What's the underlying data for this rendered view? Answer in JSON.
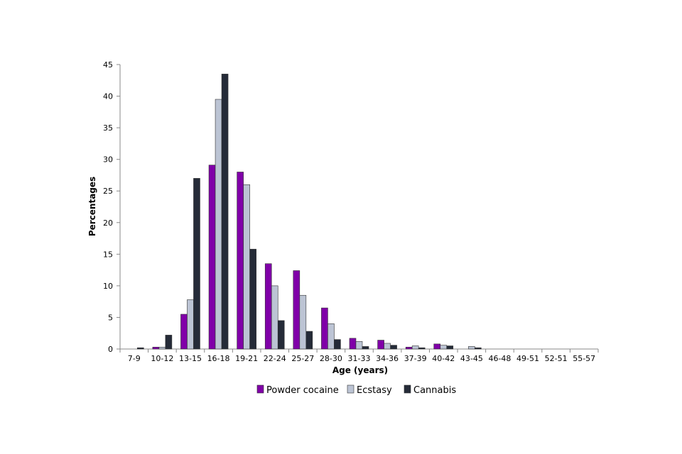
{
  "chart_data": {
    "type": "bar",
    "title": "",
    "xlabel": "Age (years)",
    "ylabel": "Percentages",
    "ylim": [
      0,
      45
    ],
    "yticks": [
      0,
      5,
      10,
      15,
      20,
      25,
      30,
      35,
      40,
      45
    ],
    "grid": false,
    "legend_position": "bottom",
    "categories": [
      "7-9",
      "10-12",
      "13-15",
      "16-18",
      "19-21",
      "22-24",
      "25-27",
      "28-30",
      "31-33",
      "34-36",
      "37-39",
      "40-42",
      "43-45",
      "46-48",
      "49-51",
      "52-51",
      "55-57"
    ],
    "series": [
      {
        "name": "Powder cocaine",
        "color": "#8000a8",
        "values": [
          0,
          0.3,
          5.5,
          29.1,
          28.0,
          13.5,
          12.4,
          6.5,
          1.7,
          1.4,
          0.3,
          0.8,
          0,
          0,
          0,
          0,
          0
        ]
      },
      {
        "name": "Ecstasy",
        "color": "#bcc4d4",
        "values": [
          0,
          0.3,
          7.8,
          39.5,
          26.0,
          10.0,
          8.5,
          4.0,
          1.2,
          0.9,
          0.5,
          0.6,
          0.4,
          0,
          0,
          0,
          0
        ]
      },
      {
        "name": "Cannabis",
        "color": "#252b38",
        "values": [
          0.2,
          2.2,
          27.0,
          43.5,
          15.8,
          4.5,
          2.8,
          1.5,
          0.4,
          0.6,
          0.2,
          0.5,
          0.2,
          0,
          0,
          0,
          0
        ]
      }
    ]
  }
}
